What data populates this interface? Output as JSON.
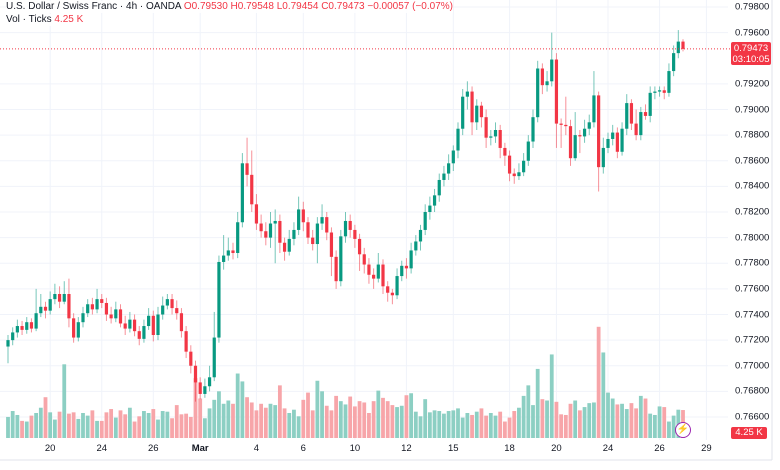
{
  "legend": {
    "symbol": "U.S. Dollar / Swiss Franc · 4h · OANDA",
    "open": "O0.79530",
    "high": "H0.79548",
    "low": "L0.79454",
    "close": "C0.79473",
    "change": "−0.00057 (−0.07%)",
    "volume_label": "Vol · Ticks",
    "volume_value": "4.25 K"
  },
  "last_price_tag": {
    "price": "0.79473",
    "countdown": "03:10:05"
  },
  "volume_tag": "4.25 K",
  "colors": {
    "up": "#089981",
    "down": "#f23645",
    "up_vol": "#8ccfc3",
    "down_vol": "#f7a5a9",
    "grid": "#f0f3fa"
  },
  "chart_data": {
    "type": "candlestick",
    "title": "U.S. Dollar / Swiss Franc · 4h · OANDA",
    "ylim": [
      0.765,
      0.799
    ],
    "y_ticks": [
      "0.79800",
      "0.79600",
      "0.79200",
      "0.79000",
      "0.78800",
      "0.78600",
      "0.78400",
      "0.78200",
      "0.78000",
      "0.77800",
      "0.77600",
      "0.77400",
      "0.77200",
      "0.77000",
      "0.76800",
      "0.76600"
    ],
    "y_tick_values": [
      0.798,
      0.796,
      0.792,
      0.79,
      0.788,
      0.786,
      0.784,
      0.782,
      0.78,
      0.778,
      0.776,
      0.774,
      0.772,
      0.77,
      0.768,
      0.766
    ],
    "x_ticks": [
      {
        "label": "20",
        "index": 9
      },
      {
        "label": "24",
        "index": 20
      },
      {
        "label": "26",
        "index": 31
      },
      {
        "label": "Mar",
        "index": 41,
        "bold": true
      },
      {
        "label": "4",
        "index": 53
      },
      {
        "label": "6",
        "index": 63
      },
      {
        "label": "10",
        "index": 74
      },
      {
        "label": "12",
        "index": 85
      },
      {
        "label": "15",
        "index": 95
      },
      {
        "label": "18",
        "index": 107
      },
      {
        "label": "20",
        "index": 117
      },
      {
        "label": "24",
        "index": 128
      },
      {
        "label": "26",
        "index": 139
      },
      {
        "label": "29",
        "index": 149
      }
    ],
    "candles_ohlc": [
      [
        0.7715,
        0.7724,
        0.7702,
        0.772
      ],
      [
        0.772,
        0.773,
        0.7716,
        0.7726
      ],
      [
        0.7726,
        0.7736,
        0.7722,
        0.7731
      ],
      [
        0.7731,
        0.7735,
        0.7724,
        0.7728
      ],
      [
        0.7728,
        0.7738,
        0.7725,
        0.7734
      ],
      [
        0.7734,
        0.7737,
        0.7726,
        0.7729
      ],
      [
        0.7729,
        0.776,
        0.7727,
        0.7741
      ],
      [
        0.7741,
        0.7756,
        0.7738,
        0.7746
      ],
      [
        0.7746,
        0.775,
        0.7737,
        0.7743
      ],
      [
        0.7743,
        0.7758,
        0.774,
        0.7752
      ],
      [
        0.7752,
        0.7764,
        0.7748,
        0.7756
      ],
      [
        0.7756,
        0.7762,
        0.7745,
        0.775
      ],
      [
        0.775,
        0.7766,
        0.7748,
        0.7756
      ],
      [
        0.7756,
        0.7768,
        0.773,
        0.7737
      ],
      [
        0.7737,
        0.7741,
        0.7718,
        0.7722
      ],
      [
        0.7722,
        0.7738,
        0.7719,
        0.7734
      ],
      [
        0.7734,
        0.7746,
        0.773,
        0.7741
      ],
      [
        0.7741,
        0.7752,
        0.7738,
        0.7748
      ],
      [
        0.7748,
        0.7753,
        0.774,
        0.7744
      ],
      [
        0.7744,
        0.776,
        0.7741,
        0.7752
      ],
      [
        0.7752,
        0.7756,
        0.7745,
        0.7749
      ],
      [
        0.7749,
        0.7753,
        0.7735,
        0.774
      ],
      [
        0.774,
        0.7746,
        0.7733,
        0.7737
      ],
      [
        0.7737,
        0.775,
        0.7734,
        0.7744
      ],
      [
        0.7744,
        0.7748,
        0.773,
        0.7733
      ],
      [
        0.7733,
        0.7739,
        0.7724,
        0.7729
      ],
      [
        0.7729,
        0.7742,
        0.7726,
        0.7736
      ],
      [
        0.7736,
        0.774,
        0.7723,
        0.7727
      ],
      [
        0.7727,
        0.7731,
        0.7716,
        0.7721
      ],
      [
        0.7721,
        0.7736,
        0.7718,
        0.7731
      ],
      [
        0.7731,
        0.7745,
        0.7728,
        0.7739
      ],
      [
        0.7739,
        0.7743,
        0.7719,
        0.7724
      ],
      [
        0.7724,
        0.7746,
        0.772,
        0.774
      ],
      [
        0.774,
        0.7754,
        0.7736,
        0.7747
      ],
      [
        0.7747,
        0.7756,
        0.7744,
        0.7752
      ],
      [
        0.7752,
        0.7756,
        0.774,
        0.7745
      ],
      [
        0.7745,
        0.7751,
        0.7736,
        0.7741
      ],
      [
        0.7741,
        0.7745,
        0.7722,
        0.7727
      ],
      [
        0.7727,
        0.7731,
        0.7706,
        0.7711
      ],
      [
        0.7711,
        0.7716,
        0.7694,
        0.77
      ],
      [
        0.77,
        0.7704,
        0.7672,
        0.7687
      ],
      [
        0.7687,
        0.7691,
        0.7674,
        0.7678
      ],
      [
        0.7678,
        0.769,
        0.7675,
        0.7684
      ],
      [
        0.7684,
        0.77,
        0.768,
        0.7691
      ],
      [
        0.7691,
        0.7742,
        0.7688,
        0.7722
      ],
      [
        0.7722,
        0.7786,
        0.7718,
        0.7781
      ],
      [
        0.7781,
        0.7802,
        0.7775,
        0.7786
      ],
      [
        0.7786,
        0.78,
        0.7782,
        0.779
      ],
      [
        0.779,
        0.7796,
        0.7783,
        0.7788
      ],
      [
        0.7788,
        0.782,
        0.7784,
        0.7812
      ],
      [
        0.7812,
        0.7866,
        0.7808,
        0.7858
      ],
      [
        0.7858,
        0.7878,
        0.784,
        0.7849
      ],
      [
        0.7849,
        0.7868,
        0.782,
        0.7826
      ],
      [
        0.7826,
        0.7834,
        0.7806,
        0.7811
      ],
      [
        0.7811,
        0.7818,
        0.78,
        0.7805
      ],
      [
        0.7805,
        0.7812,
        0.7794,
        0.78
      ],
      [
        0.78,
        0.782,
        0.7792,
        0.7811
      ],
      [
        0.7811,
        0.7822,
        0.778,
        0.7813
      ],
      [
        0.7813,
        0.7818,
        0.7788,
        0.7796
      ],
      [
        0.7796,
        0.78,
        0.7782,
        0.7789
      ],
      [
        0.7789,
        0.7806,
        0.7786,
        0.7799
      ],
      [
        0.7799,
        0.7812,
        0.7794,
        0.7806
      ],
      [
        0.7806,
        0.7832,
        0.7802,
        0.7822
      ],
      [
        0.7822,
        0.7828,
        0.7805,
        0.7812
      ],
      [
        0.7812,
        0.7816,
        0.7795,
        0.78
      ],
      [
        0.78,
        0.7806,
        0.779,
        0.7795
      ],
      [
        0.7795,
        0.7816,
        0.778,
        0.7811
      ],
      [
        0.7811,
        0.7826,
        0.7806,
        0.7816
      ],
      [
        0.7816,
        0.782,
        0.7798,
        0.7804
      ],
      [
        0.7804,
        0.7808,
        0.777,
        0.7785
      ],
      [
        0.7785,
        0.779,
        0.776,
        0.7766
      ],
      [
        0.7766,
        0.7806,
        0.7762,
        0.7801
      ],
      [
        0.7801,
        0.782,
        0.7796,
        0.7813
      ],
      [
        0.7813,
        0.7818,
        0.78,
        0.7806
      ],
      [
        0.7806,
        0.781,
        0.7792,
        0.7799
      ],
      [
        0.7799,
        0.7803,
        0.7774,
        0.7787
      ],
      [
        0.7787,
        0.7792,
        0.7772,
        0.7779
      ],
      [
        0.7779,
        0.7784,
        0.7764,
        0.7771
      ],
      [
        0.7771,
        0.7776,
        0.776,
        0.7768
      ],
      [
        0.7768,
        0.7788,
        0.7765,
        0.7779
      ],
      [
        0.7779,
        0.7783,
        0.7756,
        0.7762
      ],
      [
        0.7762,
        0.7766,
        0.775,
        0.7757
      ],
      [
        0.7757,
        0.776,
        0.7748,
        0.7755
      ],
      [
        0.7755,
        0.7776,
        0.7752,
        0.777
      ],
      [
        0.777,
        0.7782,
        0.7766,
        0.7778
      ],
      [
        0.7778,
        0.7784,
        0.7768,
        0.7776
      ],
      [
        0.7776,
        0.7796,
        0.7772,
        0.779
      ],
      [
        0.779,
        0.7802,
        0.7786,
        0.7797
      ],
      [
        0.7797,
        0.781,
        0.779,
        0.7806
      ],
      [
        0.7806,
        0.7826,
        0.7802,
        0.782
      ],
      [
        0.782,
        0.7832,
        0.7814,
        0.7825
      ],
      [
        0.7825,
        0.7838,
        0.782,
        0.7833
      ],
      [
        0.7833,
        0.785,
        0.7828,
        0.7845
      ],
      [
        0.7845,
        0.7856,
        0.784,
        0.785
      ],
      [
        0.785,
        0.7865,
        0.7845,
        0.7858
      ],
      [
        0.7858,
        0.7872,
        0.7852,
        0.7868
      ],
      [
        0.7868,
        0.789,
        0.7862,
        0.7885
      ],
      [
        0.7885,
        0.7916,
        0.788,
        0.791
      ],
      [
        0.791,
        0.7922,
        0.79,
        0.7914
      ],
      [
        0.7914,
        0.7918,
        0.788,
        0.789
      ],
      [
        0.789,
        0.7908,
        0.7884,
        0.7903
      ],
      [
        0.7903,
        0.7906,
        0.7886,
        0.7894
      ],
      [
        0.7894,
        0.79,
        0.787,
        0.7878
      ],
      [
        0.7878,
        0.7884,
        0.7872,
        0.7879
      ],
      [
        0.7879,
        0.789,
        0.7874,
        0.7884
      ],
      [
        0.7884,
        0.7888,
        0.7862,
        0.787
      ],
      [
        0.787,
        0.7874,
        0.7856,
        0.7864
      ],
      [
        0.7864,
        0.7868,
        0.7844,
        0.785
      ],
      [
        0.785,
        0.7854,
        0.7842,
        0.7848
      ],
      [
        0.7848,
        0.7858,
        0.7845,
        0.7851
      ],
      [
        0.7851,
        0.7866,
        0.7848,
        0.786
      ],
      [
        0.786,
        0.788,
        0.7856,
        0.7875
      ],
      [
        0.7875,
        0.79,
        0.787,
        0.7894
      ],
      [
        0.7894,
        0.7938,
        0.789,
        0.7932
      ],
      [
        0.7932,
        0.7936,
        0.7912,
        0.7919
      ],
      [
        0.7919,
        0.793,
        0.7914,
        0.7922
      ],
      [
        0.7922,
        0.796,
        0.7918,
        0.7939
      ],
      [
        0.7939,
        0.7944,
        0.787,
        0.7889
      ],
      [
        0.7889,
        0.7893,
        0.787,
        0.7888
      ],
      [
        0.7888,
        0.791,
        0.788,
        0.7887
      ],
      [
        0.7887,
        0.7892,
        0.7856,
        0.7862
      ],
      [
        0.7862,
        0.7898,
        0.786,
        0.788
      ],
      [
        0.788,
        0.7884,
        0.7866,
        0.7879
      ],
      [
        0.7879,
        0.7892,
        0.7874,
        0.7885
      ],
      [
        0.7885,
        0.7896,
        0.788,
        0.789
      ],
      [
        0.789,
        0.793,
        0.7886,
        0.7911
      ],
      [
        0.7911,
        0.7914,
        0.7836,
        0.7855
      ],
      [
        0.7855,
        0.7878,
        0.785,
        0.787
      ],
      [
        0.787,
        0.7882,
        0.7866,
        0.7877
      ],
      [
        0.7877,
        0.7888,
        0.7872,
        0.7882
      ],
      [
        0.7882,
        0.7886,
        0.7862,
        0.7867
      ],
      [
        0.7867,
        0.789,
        0.7864,
        0.7885
      ],
      [
        0.7885,
        0.7912,
        0.788,
        0.7905
      ],
      [
        0.7905,
        0.7908,
        0.7884,
        0.7889
      ],
      [
        0.7889,
        0.79,
        0.7876,
        0.788
      ],
      [
        0.788,
        0.7902,
        0.7876,
        0.7898
      ],
      [
        0.7898,
        0.7904,
        0.7892,
        0.7895
      ],
      [
        0.7895,
        0.7918,
        0.789,
        0.7913
      ],
      [
        0.7913,
        0.7918,
        0.7908,
        0.7914
      ],
      [
        0.7914,
        0.7918,
        0.791,
        0.7915
      ],
      [
        0.7915,
        0.7918,
        0.7908,
        0.7913
      ],
      [
        0.7913,
        0.7936,
        0.791,
        0.793
      ],
      [
        0.793,
        0.795,
        0.7926,
        0.7944
      ],
      [
        0.7944,
        0.7962,
        0.794,
        0.7953
      ],
      [
        0.7953,
        0.79548,
        0.79454,
        0.79473
      ]
    ],
    "volume_k": [
      3.2,
      4.1,
      3.5,
      2.6,
      2.5,
      3.4,
      3.8,
      4.6,
      6.2,
      3.9,
      2.8,
      4.0,
      11.2,
      3.7,
      3.9,
      2.9,
      3.8,
      3.4,
      4.2,
      2.6,
      2.6,
      3.9,
      4.4,
      3.1,
      4.2,
      3.6,
      4.6,
      2.5,
      3.3,
      4.1,
      3.8,
      4.4,
      2.8,
      4.1,
      4.0,
      3.0,
      5.0,
      3.6,
      3.7,
      3.2,
      9.1,
      6.0,
      3.0,
      4.5,
      5.8,
      7.1,
      5.2,
      5.7,
      5.2,
      9.8,
      8.6,
      6.2,
      5.4,
      4.2,
      5.2,
      4.6,
      5.2,
      5.0,
      8.0,
      4.5,
      3.8,
      4.3,
      3.3,
      5.8,
      6.9,
      4.2,
      8.7,
      7.1,
      4.9,
      4.2,
      6.4,
      5.6,
      5.1,
      6.3,
      4.8,
      5.6,
      5.4,
      3.8,
      5.6,
      7.2,
      6.1,
      5.6,
      5.0,
      4.7,
      4.9,
      6.5,
      6.8,
      4.0,
      3.3,
      5.9,
      3.9,
      4.2,
      4.1,
      3.7,
      4.1,
      4.2,
      4.5,
      3.1,
      3.8,
      3.5,
      4.0,
      4.5,
      3.4,
      3.8,
      3.4,
      4.0,
      2.5,
      3.1,
      4.1,
      4.6,
      6.4,
      8.0,
      5.0,
      10.5,
      5.9,
      5.7,
      12.7,
      5.5,
      3.6,
      3.5,
      5.2,
      5.7,
      4.2,
      4.7,
      5.3,
      5.4,
      16.9,
      13.0,
      6.9,
      6.0,
      5.1,
      5.2,
      4.4,
      5.3,
      4.5,
      6.4,
      6.0,
      3.7,
      3.5,
      4.8,
      4.7,
      2.5,
      3.4,
      4.3,
      4.25
    ],
    "last_price": 0.79473,
    "grid": true
  }
}
